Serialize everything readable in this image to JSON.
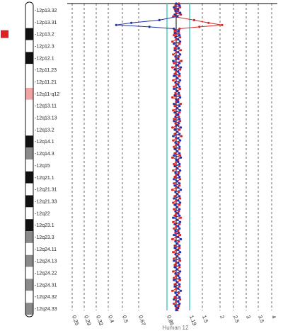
{
  "chart_data": {
    "type": "line",
    "xlabel": "Human 12",
    "x_scale": "log",
    "xlim": [
      0.25,
      4
    ],
    "x_ticks": [
      "0.25",
      "0.29",
      "0.33",
      "0.4",
      "0.5",
      "0.67",
      "0.85",
      "1.19",
      "1.5",
      "2",
      "2.5",
      "3",
      "3.5",
      "4"
    ],
    "threshold_ticks": [
      "0.85",
      "1.19"
    ],
    "threshold_color": "#40c8c8",
    "marker": {
      "band": "12p13.2",
      "color": "#dd2222"
    },
    "chromosome_bands": [
      {
        "label": "12p13.32",
        "stain": "white"
      },
      {
        "label": "12p13.31",
        "stain": "white"
      },
      {
        "label": "12p13.2",
        "stain": "black"
      },
      {
        "label": "12p12.3",
        "stain": "white"
      },
      {
        "label": "12p12.1",
        "stain": "black"
      },
      {
        "label": "12p11.23",
        "stain": "white"
      },
      {
        "label": "12p11.21",
        "stain": "white"
      },
      {
        "label": "12q11-q12",
        "stain": "pink"
      },
      {
        "label": "12q13.11",
        "stain": "white"
      },
      {
        "label": "12q13.13",
        "stain": "white"
      },
      {
        "label": "12q13.2",
        "stain": "white"
      },
      {
        "label": "12q14.1",
        "stain": "black"
      },
      {
        "label": "12q14.3",
        "stain": "gray"
      },
      {
        "label": "12q15",
        "stain": "white"
      },
      {
        "label": "12q21.1",
        "stain": "black"
      },
      {
        "label": "12q21.31",
        "stain": "white"
      },
      {
        "label": "12q21.33",
        "stain": "black"
      },
      {
        "label": "12q22",
        "stain": "white"
      },
      {
        "label": "12q23.1",
        "stain": "black"
      },
      {
        "label": "12q23.3",
        "stain": "gray"
      },
      {
        "label": "12q24.11",
        "stain": "white"
      },
      {
        "label": "12q24.13",
        "stain": "gray"
      },
      {
        "label": "12q24.22",
        "stain": "white"
      },
      {
        "label": "12q24.31",
        "stain": "gray"
      },
      {
        "label": "12q24.32",
        "stain": "white"
      },
      {
        "label": "12q24.33",
        "stain": "gray"
      }
    ],
    "series": [
      {
        "color": "#dd2222",
        "points": [
          [
            1.04,
            0.0
          ],
          [
            0.99,
            0.6
          ],
          [
            1.06,
            1.2
          ],
          [
            0.98,
            1.8
          ],
          [
            1.03,
            2.4
          ],
          [
            1.0,
            3.0
          ],
          [
            1.07,
            3.6
          ],
          [
            0.96,
            4.2
          ],
          [
            1.3,
            5.4
          ],
          [
            1.6,
            6.3
          ],
          [
            1.95,
            7.0
          ],
          [
            1.4,
            7.6
          ],
          [
            1.05,
            8.2
          ],
          [
            0.98,
            8.9
          ],
          [
            1.04,
            9.6
          ],
          [
            0.97,
            10.3
          ],
          [
            1.06,
            11.0
          ],
          [
            1.0,
            11.7
          ],
          [
            0.95,
            12.4
          ],
          [
            1.05,
            13.1
          ],
          [
            1.02,
            13.8
          ],
          [
            0.98,
            14.5
          ],
          [
            1.07,
            15.2
          ],
          [
            1.0,
            15.9
          ],
          [
            0.96,
            16.6
          ],
          [
            1.04,
            17.3
          ],
          [
            1.0,
            18.0
          ],
          [
            1.08,
            18.7
          ],
          [
            0.97,
            19.4
          ],
          [
            1.03,
            20.1
          ],
          [
            0.95,
            20.8
          ],
          [
            1.06,
            21.5
          ],
          [
            1.0,
            22.2
          ],
          [
            0.98,
            22.9
          ],
          [
            1.05,
            23.6
          ],
          [
            1.01,
            24.3
          ],
          [
            0.96,
            25.0
          ],
          [
            1.04,
            25.7
          ],
          [
            1.0,
            26.4
          ],
          [
            0.97,
            27.1
          ],
          [
            1.06,
            27.8
          ],
          [
            1.02,
            28.5
          ],
          [
            0.99,
            29.2
          ],
          [
            1.05,
            29.9
          ],
          [
            0.95,
            30.6
          ],
          [
            1.03,
            31.3
          ],
          [
            1.0,
            32.0
          ],
          [
            1.07,
            32.7
          ],
          [
            0.98,
            33.4
          ],
          [
            1.02,
            34.1
          ],
          [
            0.96,
            34.8
          ],
          [
            1.05,
            35.5
          ],
          [
            1.0,
            36.2
          ],
          [
            1.04,
            36.9
          ],
          [
            0.97,
            37.6
          ],
          [
            1.06,
            38.3
          ],
          [
            0.99,
            39.0
          ],
          [
            1.03,
            39.7
          ],
          [
            0.95,
            40.4
          ],
          [
            1.05,
            41.1
          ],
          [
            1.01,
            41.8
          ],
          [
            0.98,
            42.5
          ],
          [
            1.08,
            43.2
          ],
          [
            1.0,
            43.9
          ],
          [
            0.96,
            44.6
          ],
          [
            1.04,
            45.3
          ],
          [
            1.0,
            46.0
          ],
          [
            0.97,
            46.7
          ],
          [
            1.05,
            47.4
          ],
          [
            1.02,
            48.1
          ],
          [
            0.98,
            48.8
          ],
          [
            1.06,
            49.5
          ],
          [
            0.95,
            50.2
          ],
          [
            1.03,
            50.9
          ],
          [
            1.0,
            51.6
          ],
          [
            0.97,
            52.3
          ],
          [
            1.05,
            53.0
          ],
          [
            1.01,
            53.7
          ],
          [
            0.96,
            54.4
          ],
          [
            1.04,
            55.1
          ],
          [
            1.0,
            55.8
          ],
          [
            0.98,
            56.5
          ],
          [
            1.06,
            57.2
          ],
          [
            1.02,
            57.9
          ],
          [
            0.97,
            58.6
          ],
          [
            1.05,
            59.3
          ],
          [
            1.0,
            60.0
          ],
          [
            0.95,
            60.7
          ],
          [
            1.04,
            61.4
          ],
          [
            1.01,
            62.1
          ],
          [
            0.98,
            62.8
          ],
          [
            1.06,
            63.5
          ],
          [
            1.0,
            64.2
          ],
          [
            0.96,
            64.9
          ],
          [
            1.05,
            65.6
          ],
          [
            1.02,
            66.3
          ],
          [
            0.97,
            67.0
          ],
          [
            1.04,
            67.7
          ],
          [
            1.0,
            68.4
          ],
          [
            0.98,
            69.1
          ],
          [
            1.07,
            69.8
          ],
          [
            1.01,
            70.5
          ],
          [
            0.96,
            71.2
          ],
          [
            1.05,
            71.9
          ],
          [
            1.0,
            72.6
          ],
          [
            0.97,
            73.3
          ],
          [
            1.03,
            74.0
          ],
          [
            0.99,
            74.7
          ],
          [
            1.06,
            75.4
          ],
          [
            1.0,
            76.1
          ],
          [
            0.95,
            76.8
          ],
          [
            1.04,
            77.5
          ],
          [
            1.02,
            78.2
          ],
          [
            0.98,
            78.9
          ],
          [
            1.05,
            79.6
          ],
          [
            1.0,
            80.3
          ],
          [
            0.96,
            81.0
          ],
          [
            1.04,
            81.7
          ],
          [
            1.01,
            82.4
          ],
          [
            0.97,
            83.1
          ],
          [
            1.06,
            83.8
          ],
          [
            1.0,
            84.5
          ],
          [
            0.98,
            85.2
          ],
          [
            1.05,
            85.9
          ],
          [
            1.02,
            86.6
          ],
          [
            0.96,
            87.3
          ],
          [
            1.04,
            88.0
          ],
          [
            1.0,
            88.7
          ],
          [
            0.97,
            89.4
          ],
          [
            1.06,
            90.1
          ],
          [
            1.01,
            90.8
          ],
          [
            0.98,
            91.5
          ],
          [
            1.05,
            92.2
          ],
          [
            1.0,
            92.9
          ],
          [
            0.95,
            93.6
          ],
          [
            1.04,
            94.3
          ],
          [
            1.02,
            95.0
          ],
          [
            0.98,
            95.7
          ],
          [
            1.06,
            96.4
          ],
          [
            1.0,
            97.1
          ],
          [
            0.97,
            97.8
          ],
          [
            1.04,
            98.5
          ],
          [
            1.0,
            99.2
          ],
          [
            1.02,
            99.9
          ]
        ]
      },
      {
        "color": "#2233aa",
        "points": [
          [
            1.0,
            0.0
          ],
          [
            1.05,
            0.6
          ],
          [
            0.97,
            1.2
          ],
          [
            1.03,
            1.8
          ],
          [
            0.99,
            2.4
          ],
          [
            1.06,
            3.0
          ],
          [
            0.98,
            3.6
          ],
          [
            1.02,
            4.2
          ],
          [
            0.8,
            5.4
          ],
          [
            0.55,
            6.3
          ],
          [
            0.45,
            7.0
          ],
          [
            0.7,
            7.6
          ],
          [
            0.97,
            8.2
          ],
          [
            1.04,
            8.9
          ],
          [
            0.98,
            9.6
          ],
          [
            1.05,
            10.3
          ],
          [
            0.99,
            11.0
          ],
          [
            1.03,
            11.7
          ],
          [
            1.06,
            12.4
          ],
          [
            0.97,
            13.1
          ],
          [
            1.0,
            13.8
          ],
          [
            1.04,
            14.5
          ],
          [
            0.98,
            15.2
          ],
          [
            1.03,
            15.9
          ],
          [
            1.06,
            16.6
          ],
          [
            0.99,
            17.3
          ],
          [
            1.03,
            18.0
          ],
          [
            0.96,
            18.7
          ],
          [
            1.05,
            19.4
          ],
          [
            1.0,
            20.1
          ],
          [
            1.07,
            20.8
          ],
          [
            0.98,
            21.5
          ],
          [
            1.03,
            22.2
          ],
          [
            1.05,
            22.9
          ],
          [
            0.97,
            23.6
          ],
          [
            1.02,
            24.3
          ],
          [
            1.06,
            25.0
          ],
          [
            0.99,
            25.7
          ],
          [
            1.03,
            26.4
          ],
          [
            1.05,
            27.1
          ],
          [
            0.97,
            27.8
          ],
          [
            1.01,
            28.5
          ],
          [
            1.04,
            29.2
          ],
          [
            0.98,
            29.9
          ],
          [
            1.06,
            30.6
          ],
          [
            1.0,
            31.3
          ],
          [
            1.03,
            32.0
          ],
          [
            0.97,
            32.7
          ],
          [
            1.05,
            33.4
          ],
          [
            1.01,
            34.1
          ],
          [
            1.06,
            34.8
          ],
          [
            0.98,
            35.5
          ],
          [
            1.03,
            36.2
          ],
          [
            0.99,
            36.9
          ],
          [
            1.05,
            37.6
          ],
          [
            0.97,
            38.3
          ],
          [
            1.04,
            39.0
          ],
          [
            1.0,
            39.7
          ],
          [
            1.07,
            40.4
          ],
          [
            0.98,
            41.1
          ],
          [
            1.02,
            41.8
          ],
          [
            1.05,
            42.5
          ],
          [
            0.96,
            43.2
          ],
          [
            1.03,
            43.9
          ],
          [
            1.06,
            44.6
          ],
          [
            0.99,
            45.3
          ],
          [
            1.03,
            46.0
          ],
          [
            1.05,
            46.7
          ],
          [
            0.98,
            47.4
          ],
          [
            1.01,
            48.1
          ],
          [
            1.05,
            48.8
          ],
          [
            0.97,
            49.5
          ],
          [
            1.07,
            50.2
          ],
          [
            1.0,
            50.9
          ],
          [
            1.03,
            51.6
          ],
          [
            1.05,
            52.3
          ],
          [
            0.98,
            53.0
          ],
          [
            1.02,
            53.7
          ],
          [
            1.06,
            54.4
          ],
          [
            0.99,
            55.1
          ],
          [
            1.03,
            55.8
          ],
          [
            1.05,
            56.5
          ],
          [
            0.97,
            57.2
          ],
          [
            1.01,
            57.9
          ],
          [
            1.05,
            58.6
          ],
          [
            0.98,
            59.3
          ],
          [
            1.03,
            60.0
          ],
          [
            1.07,
            60.7
          ],
          [
            0.99,
            61.4
          ],
          [
            1.02,
            62.1
          ],
          [
            1.05,
            62.8
          ],
          [
            0.97,
            63.5
          ],
          [
            1.03,
            64.2
          ],
          [
            1.06,
            64.9
          ],
          [
            0.98,
            65.6
          ],
          [
            1.01,
            66.3
          ],
          [
            1.05,
            67.0
          ],
          [
            0.99,
            67.7
          ],
          [
            1.03,
            68.4
          ],
          [
            1.05,
            69.1
          ],
          [
            0.96,
            69.8
          ],
          [
            1.02,
            70.5
          ],
          [
            1.06,
            71.2
          ],
          [
            0.98,
            71.9
          ],
          [
            1.03,
            72.6
          ],
          [
            1.05,
            73.3
          ],
          [
            0.99,
            74.0
          ],
          [
            1.04,
            74.7
          ],
          [
            0.97,
            75.4
          ],
          [
            1.03,
            76.1
          ],
          [
            1.07,
            76.8
          ],
          [
            0.99,
            77.5
          ],
          [
            1.01,
            78.2
          ],
          [
            1.05,
            78.9
          ],
          [
            0.98,
            79.6
          ],
          [
            1.03,
            80.3
          ],
          [
            1.06,
            81.0
          ],
          [
            0.99,
            81.7
          ],
          [
            1.02,
            82.4
          ],
          [
            1.05,
            83.1
          ],
          [
            0.97,
            83.8
          ],
          [
            1.03,
            84.5
          ],
          [
            1.05,
            85.2
          ],
          [
            0.98,
            85.9
          ],
          [
            1.01,
            86.6
          ],
          [
            1.06,
            87.3
          ],
          [
            0.99,
            88.0
          ],
          [
            1.03,
            88.7
          ],
          [
            1.05,
            89.4
          ],
          [
            0.97,
            90.1
          ],
          [
            1.02,
            90.8
          ],
          [
            1.05,
            91.5
          ],
          [
            0.98,
            92.2
          ],
          [
            1.03,
            92.9
          ],
          [
            1.07,
            93.6
          ],
          [
            0.99,
            94.3
          ],
          [
            1.01,
            95.0
          ],
          [
            1.05,
            95.7
          ],
          [
            0.97,
            96.4
          ],
          [
            1.03,
            97.1
          ],
          [
            1.05,
            97.8
          ],
          [
            0.99,
            98.5
          ],
          [
            1.03,
            99.2
          ],
          [
            1.0,
            99.9
          ]
        ]
      }
    ]
  }
}
